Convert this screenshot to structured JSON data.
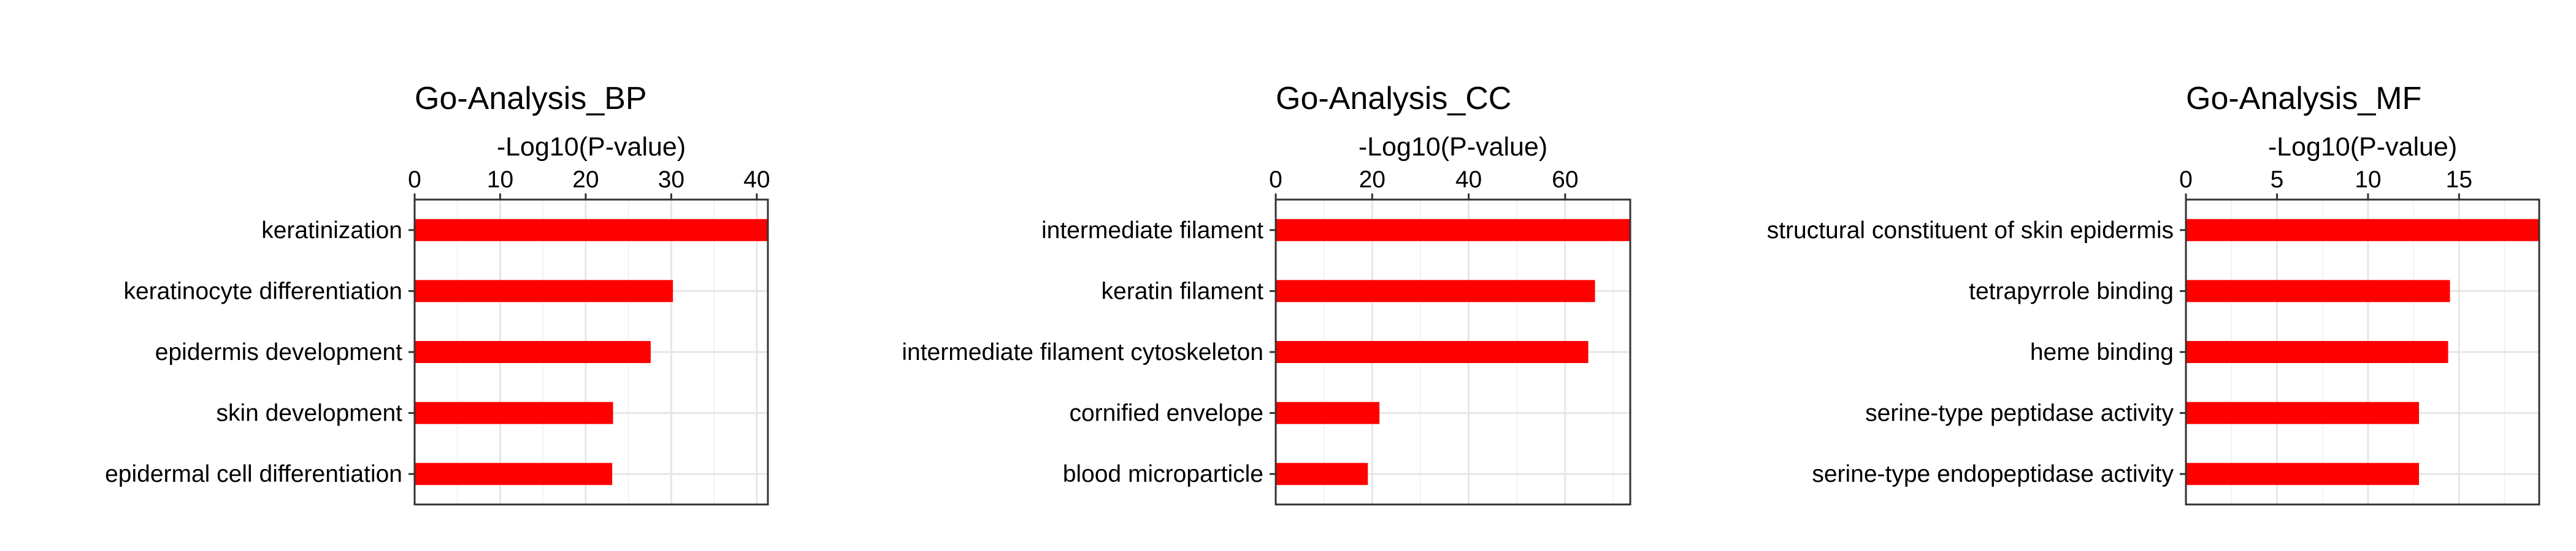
{
  "chart_data": [
    {
      "type": "bar",
      "orientation": "horizontal",
      "title": "Go-Analysis_BP",
      "xlabel": "-Log10(P-value)",
      "xaxis_position": "top",
      "xlim": [
        0,
        41.3
      ],
      "xticks": [
        0,
        10,
        20,
        30,
        40
      ],
      "grid": true,
      "bar_color": "#ff0000",
      "categories": [
        "keratinization",
        "keratinocyte differentiation",
        "epidermis development",
        "skin development",
        "epidermal cell differentiation"
      ],
      "values": [
        41.3,
        30.2,
        27.6,
        23.2,
        23.1
      ]
    },
    {
      "type": "bar",
      "orientation": "horizontal",
      "title": "Go-Analysis_CC",
      "xlabel": "-Log10(P-value)",
      "xaxis_position": "top",
      "xlim": [
        0,
        73.5
      ],
      "xticks": [
        0,
        20,
        40,
        60
      ],
      "grid": true,
      "bar_color": "#ff0000",
      "categories": [
        "intermediate filament",
        "keratin filament",
        "intermediate filament cytoskeleton",
        "cornified envelope",
        "blood microparticle"
      ],
      "values": [
        73.5,
        66.2,
        64.8,
        21.5,
        19.1
      ]
    },
    {
      "type": "bar",
      "orientation": "horizontal",
      "title": "Go-Analysis_MF",
      "xlabel": "-Log10(P-value)",
      "xaxis_position": "top",
      "xlim": [
        0,
        19.4
      ],
      "xticks": [
        0,
        5,
        10,
        15
      ],
      "grid": true,
      "bar_color": "#ff0000",
      "categories": [
        "structural constituent of skin epidermis",
        "tetrapyrrole binding",
        "heme binding",
        "serine-type peptidase activity",
        "serine-type endopeptidase activity"
      ],
      "values": [
        19.4,
        14.5,
        14.4,
        12.8,
        12.8
      ]
    }
  ]
}
